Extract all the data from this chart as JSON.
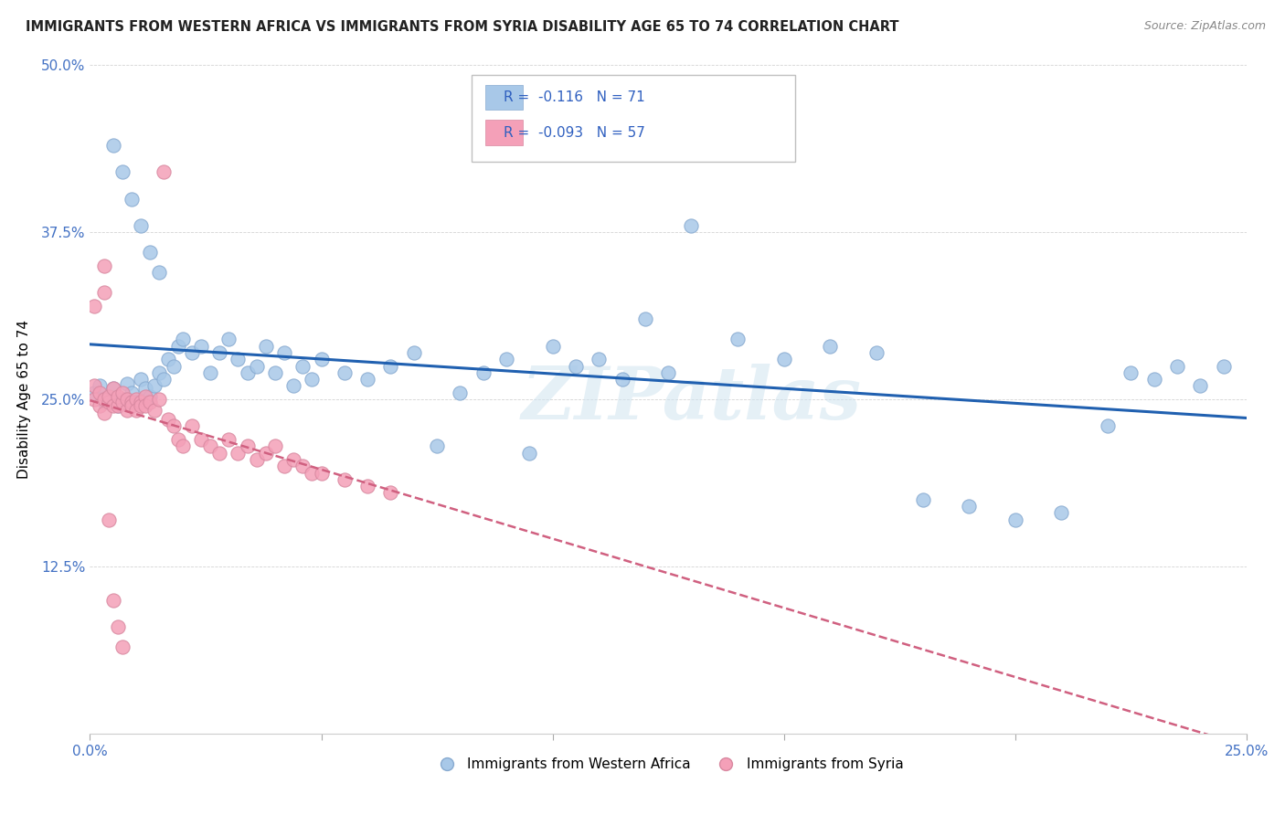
{
  "title": "IMMIGRANTS FROM WESTERN AFRICA VS IMMIGRANTS FROM SYRIA DISABILITY AGE 65 TO 74 CORRELATION CHART",
  "source": "Source: ZipAtlas.com",
  "ylabel": "Disability Age 65 to 74",
  "xlim": [
    0.0,
    0.25
  ],
  "ylim": [
    0.0,
    0.5
  ],
  "yticks": [
    0.0,
    0.125,
    0.25,
    0.375,
    0.5
  ],
  "yticklabels": [
    "",
    "12.5%",
    "25.0%",
    "37.5%",
    "50.0%"
  ],
  "xticks": [
    0.0,
    0.05,
    0.1,
    0.15,
    0.2,
    0.25
  ],
  "xticklabels": [
    "0.0%",
    "",
    "",
    "",
    "",
    "25.0%"
  ],
  "R_blue": -0.116,
  "N_blue": 71,
  "R_pink": -0.093,
  "N_pink": 57,
  "color_blue": "#a8c8e8",
  "color_pink": "#f4a0b8",
  "edge_blue": "#88aad0",
  "edge_pink": "#d888a0",
  "line_blue": "#2060b0",
  "line_pink": "#d06080",
  "watermark": "ZIPatlas",
  "legend_label_blue": "Immigrants from Western Africa",
  "legend_label_pink": "Immigrants from Syria",
  "blue_x": [
    0.001,
    0.002,
    0.003,
    0.004,
    0.005,
    0.006,
    0.007,
    0.008,
    0.009,
    0.01,
    0.011,
    0.012,
    0.013,
    0.014,
    0.015,
    0.016,
    0.017,
    0.018,
    0.019,
    0.02,
    0.022,
    0.024,
    0.026,
    0.028,
    0.03,
    0.032,
    0.034,
    0.036,
    0.038,
    0.04,
    0.042,
    0.044,
    0.046,
    0.048,
    0.05,
    0.055,
    0.06,
    0.065,
    0.07,
    0.075,
    0.08,
    0.085,
    0.09,
    0.095,
    0.1,
    0.105,
    0.11,
    0.115,
    0.12,
    0.125,
    0.13,
    0.14,
    0.15,
    0.16,
    0.17,
    0.18,
    0.19,
    0.2,
    0.21,
    0.22,
    0.225,
    0.23,
    0.235,
    0.24,
    0.245,
    0.005,
    0.007,
    0.009,
    0.011,
    0.013,
    0.015
  ],
  "blue_y": [
    0.255,
    0.26,
    0.248,
    0.252,
    0.258,
    0.245,
    0.25,
    0.262,
    0.255,
    0.248,
    0.265,
    0.258,
    0.252,
    0.26,
    0.27,
    0.265,
    0.28,
    0.275,
    0.29,
    0.295,
    0.285,
    0.29,
    0.27,
    0.285,
    0.295,
    0.28,
    0.27,
    0.275,
    0.29,
    0.27,
    0.285,
    0.26,
    0.275,
    0.265,
    0.28,
    0.27,
    0.265,
    0.275,
    0.285,
    0.215,
    0.255,
    0.27,
    0.28,
    0.21,
    0.29,
    0.275,
    0.28,
    0.265,
    0.31,
    0.27,
    0.38,
    0.295,
    0.28,
    0.29,
    0.285,
    0.175,
    0.17,
    0.16,
    0.165,
    0.23,
    0.27,
    0.265,
    0.275,
    0.26,
    0.275,
    0.44,
    0.42,
    0.4,
    0.38,
    0.36,
    0.345
  ],
  "pink_x": [
    0.001,
    0.001,
    0.002,
    0.002,
    0.003,
    0.003,
    0.004,
    0.004,
    0.005,
    0.005,
    0.006,
    0.006,
    0.007,
    0.007,
    0.008,
    0.008,
    0.009,
    0.009,
    0.01,
    0.01,
    0.011,
    0.011,
    0.012,
    0.012,
    0.013,
    0.014,
    0.015,
    0.016,
    0.017,
    0.018,
    0.019,
    0.02,
    0.022,
    0.024,
    0.026,
    0.028,
    0.03,
    0.032,
    0.034,
    0.036,
    0.038,
    0.04,
    0.042,
    0.044,
    0.046,
    0.048,
    0.05,
    0.055,
    0.06,
    0.065,
    0.003,
    0.003,
    0.004,
    0.005,
    0.006,
    0.007,
    0.001
  ],
  "pink_y": [
    0.25,
    0.26,
    0.245,
    0.255,
    0.24,
    0.25,
    0.248,
    0.252,
    0.245,
    0.258,
    0.245,
    0.252,
    0.248,
    0.255,
    0.242,
    0.25,
    0.248,
    0.245,
    0.25,
    0.242,
    0.248,
    0.245,
    0.252,
    0.245,
    0.248,
    0.242,
    0.25,
    0.42,
    0.235,
    0.23,
    0.22,
    0.215,
    0.23,
    0.22,
    0.215,
    0.21,
    0.22,
    0.21,
    0.215,
    0.205,
    0.21,
    0.215,
    0.2,
    0.205,
    0.2,
    0.195,
    0.195,
    0.19,
    0.185,
    0.18,
    0.35,
    0.33,
    0.16,
    0.1,
    0.08,
    0.065,
    0.32
  ]
}
